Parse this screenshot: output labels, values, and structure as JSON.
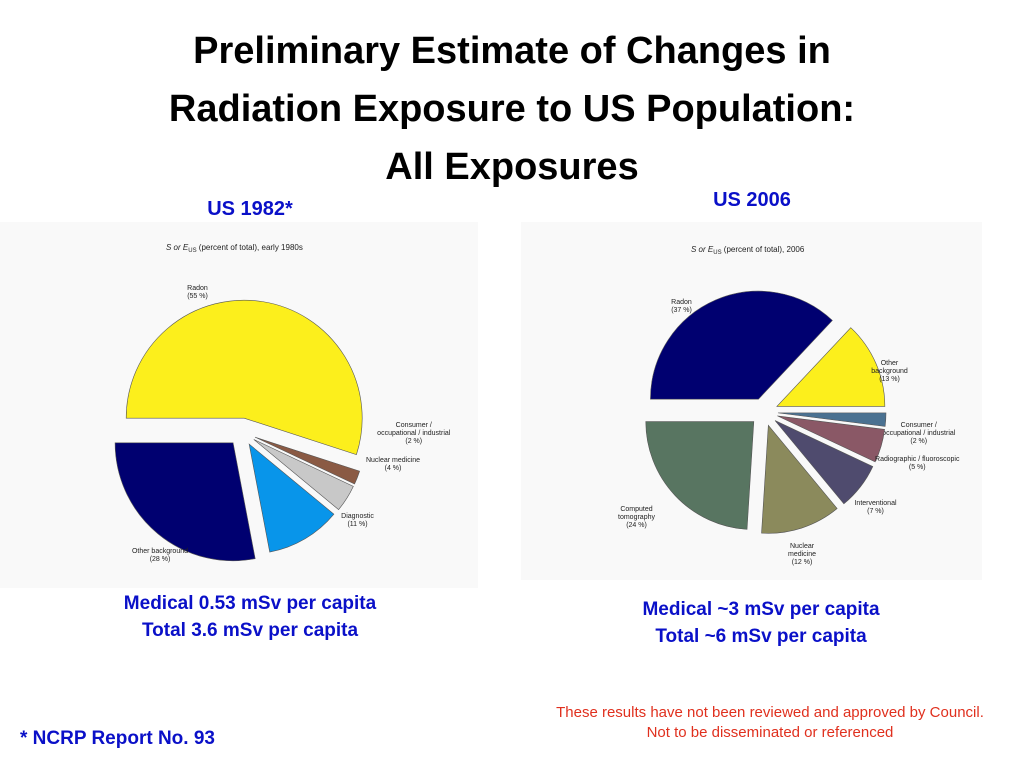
{
  "slide": {
    "title_lines": [
      "Preliminary Estimate of Changes in",
      "Radiation Exposure to US Population:",
      "All Exposures"
    ],
    "footnote": "* NCRP Report No. 93",
    "disclaimer_lines": [
      "These results have not been reviewed and approved by Council.",
      "Not to be disseminated or referenced"
    ]
  },
  "chart_data": [
    {
      "type": "pie",
      "heading": "US 1982*",
      "title_prefix": "S or E",
      "title_sub": "US",
      "title_suffix": " (percent of total), early 1980s",
      "summary": [
        "Medical 0.53 mSv per capita",
        "Total 3.6 mSv per capita"
      ],
      "slices": [
        {
          "lines": [
            "Radon",
            "(55 %)"
          ],
          "value": 55,
          "color": "#fcef1c"
        },
        {
          "lines": [
            "Consumer /",
            "occupational / industrial",
            "(2 %)"
          ],
          "value": 2,
          "color": "#8a5a44"
        },
        {
          "lines": [
            "Nuclear medicine",
            "(4 %)"
          ],
          "value": 4,
          "color": "#c8c8c8"
        },
        {
          "lines": [
            "Diagnostic",
            "(11 %)"
          ],
          "value": 11,
          "color": "#0895ea"
        },
        {
          "lines": [
            "Other background",
            "(28 %)"
          ],
          "value": 28,
          "color": "#000070"
        }
      ]
    },
    {
      "type": "pie",
      "heading": "US 2006",
      "title_prefix": "S or E",
      "title_sub": "US",
      "title_suffix": " (percent of total), 2006",
      "summary": [
        "Medical ~3 mSv per capita",
        "Total ~6 mSv per capita"
      ],
      "slices": [
        {
          "lines": [
            "Radon",
            "(37 %)"
          ],
          "value": 37,
          "color": "#000070"
        },
        {
          "lines": [
            "Other",
            "background",
            "(13 %)"
          ],
          "value": 13,
          "color": "#fcef1c"
        },
        {
          "lines": [
            "Consumer /",
            "occupational / industrial",
            "(2 %)"
          ],
          "value": 2,
          "color": "#4a7191"
        },
        {
          "lines": [
            "Radiographic / fluoroscopic",
            "(5 %)"
          ],
          "value": 5,
          "color": "#8a5866"
        },
        {
          "lines": [
            "Interventional",
            "(7 %)"
          ],
          "value": 7,
          "color": "#4f4b6e"
        },
        {
          "lines": [
            "Nuclear",
            "medicine",
            "(12 %)"
          ],
          "value": 12,
          "color": "#8b8a5c"
        },
        {
          "lines": [
            "Computed",
            "tomography",
            "(24 %)"
          ],
          "value": 24,
          "color": "#587561"
        }
      ]
    }
  ]
}
